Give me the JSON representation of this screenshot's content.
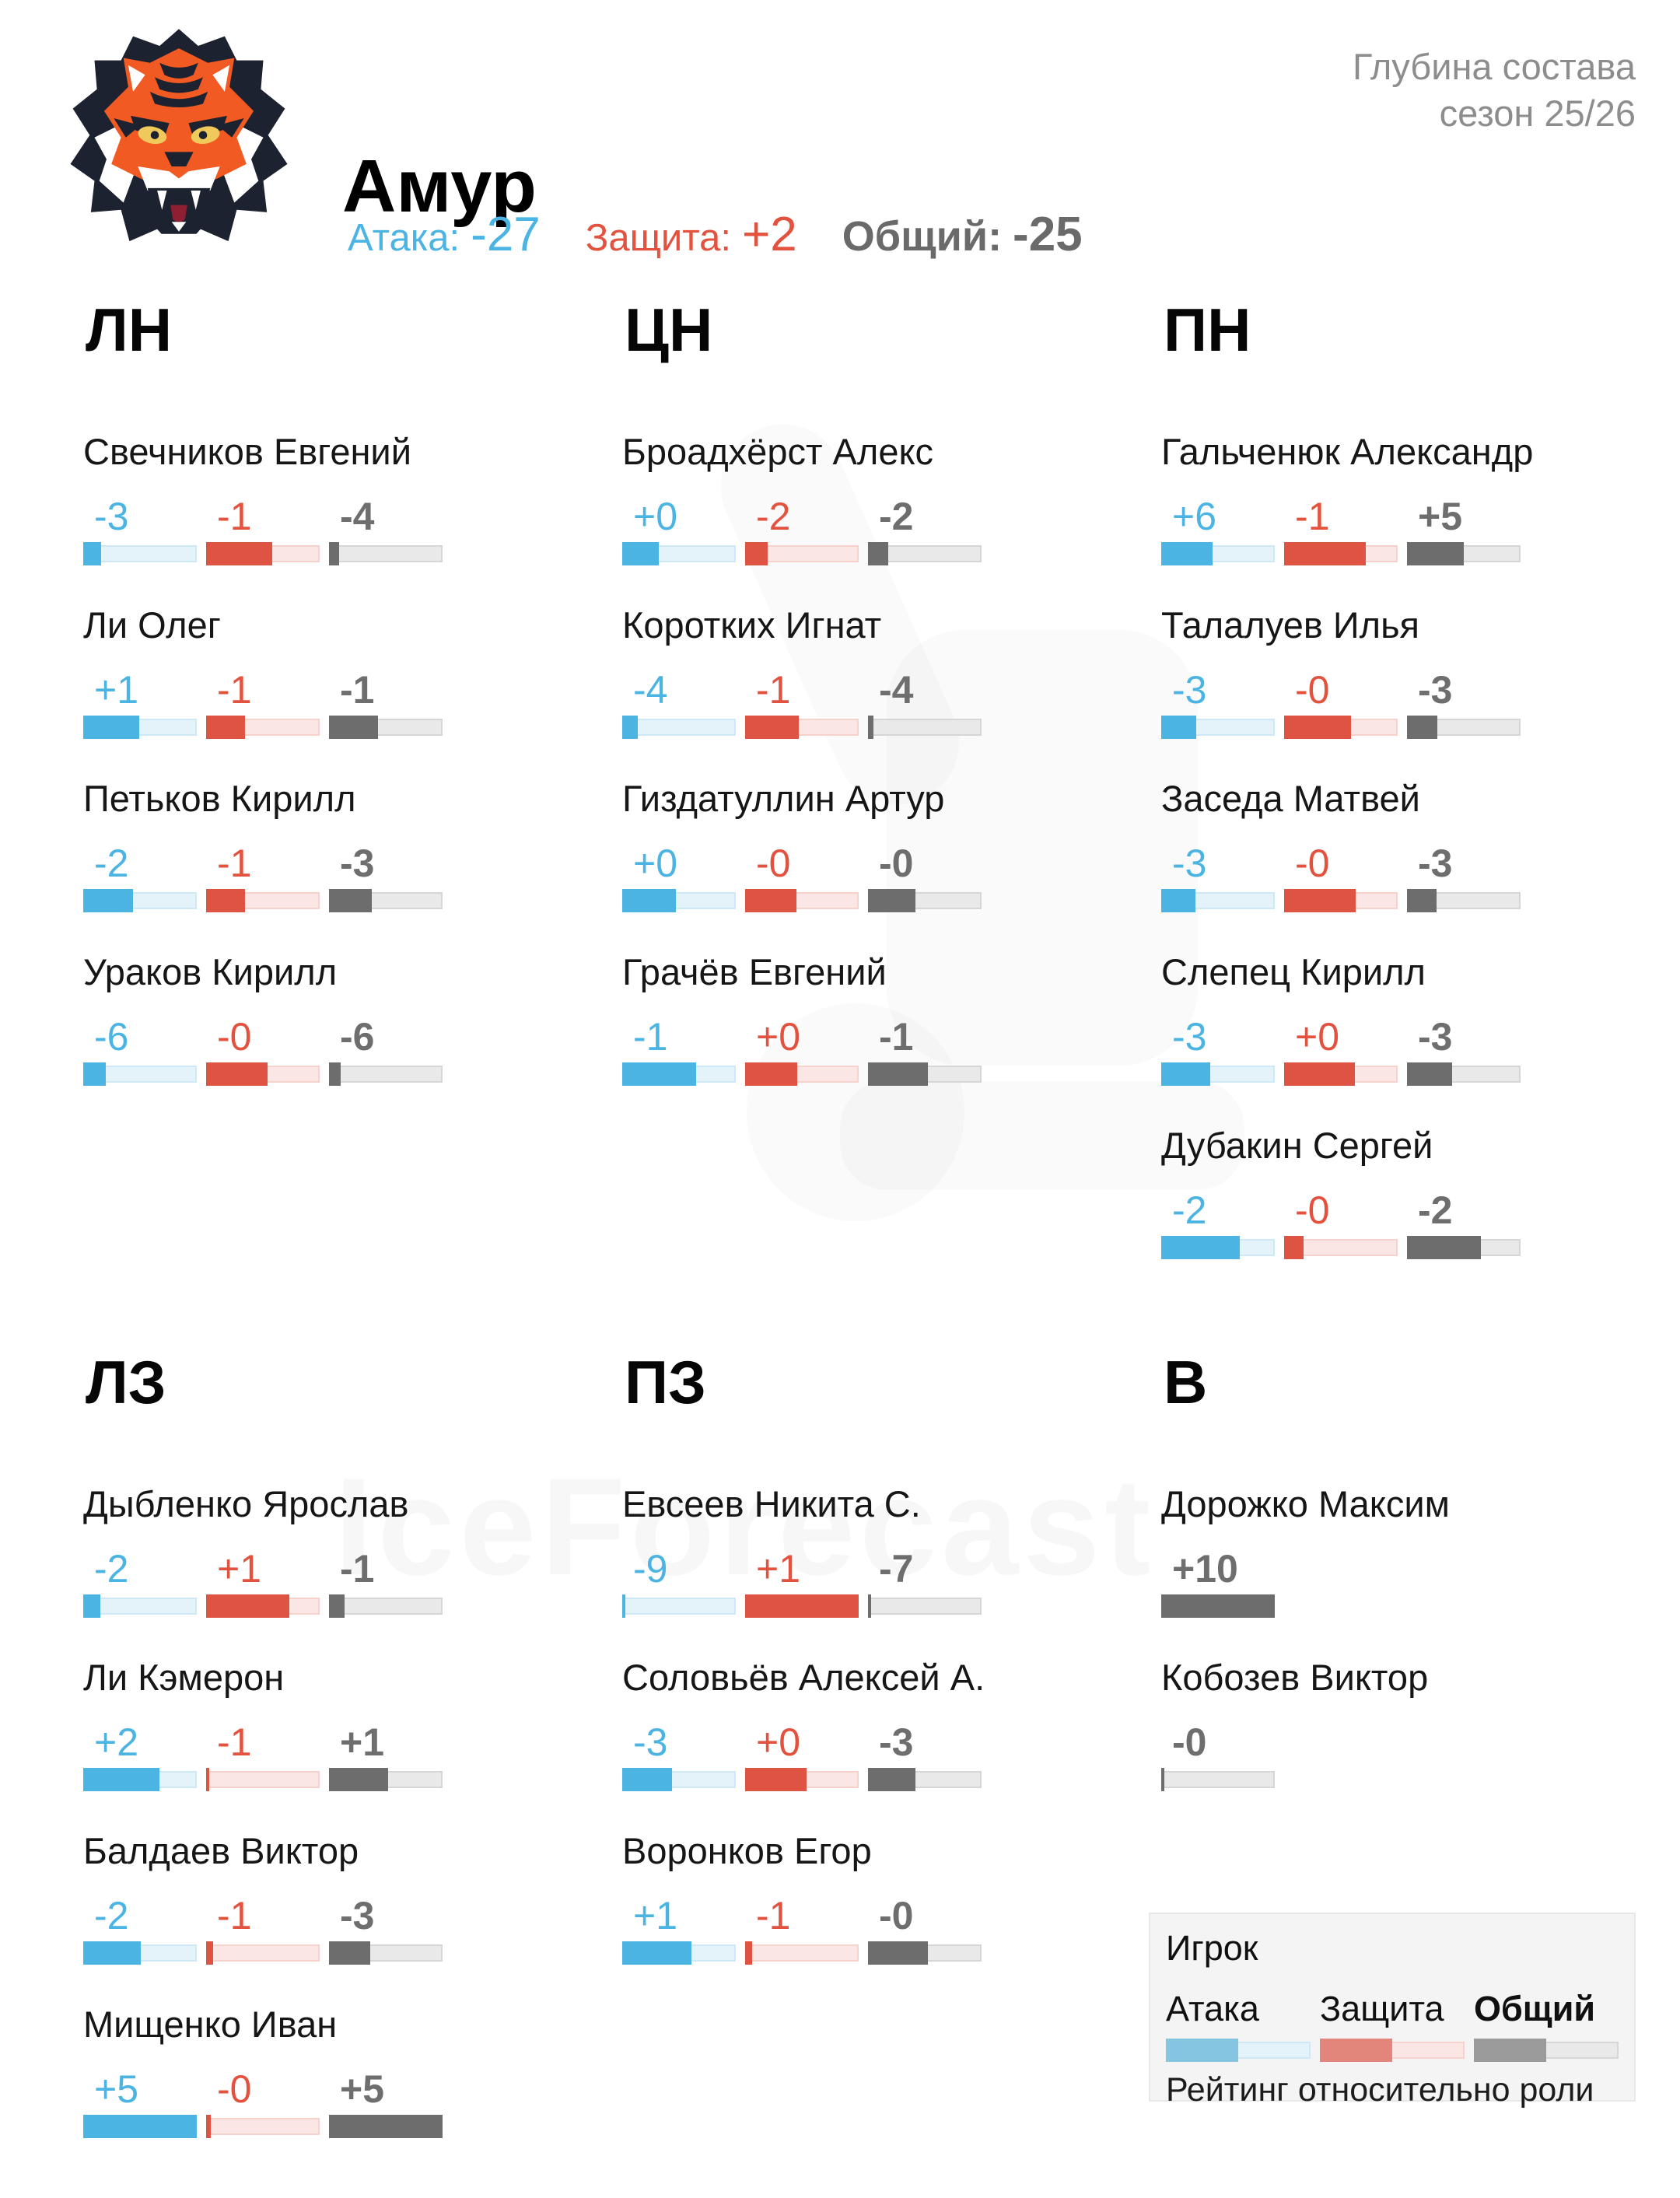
{
  "header": {
    "team_name": "Амур",
    "attack_label": "Атака:",
    "attack_value": "-27",
    "defense_label": "Защита:",
    "defense_value": "+2",
    "overall_label": "Общий:",
    "overall_value": "-25",
    "info_line1": "Глубина состава",
    "info_line2": "сезон 25/26"
  },
  "watermark": "IceForecast",
  "colors": {
    "attack": "#4cb4e3",
    "defense": "#df5342",
    "overall": "#6d6d6d",
    "logo_orange": "#f15a22",
    "logo_dark": "#1c2230"
  },
  "legend": {
    "player_label": "Игрок",
    "attack_label": "Атака",
    "defense_label": "Защита",
    "overall_label": "Общий",
    "caption": "Рейтинг относительно роли",
    "bar_pct": 50
  },
  "chart_data": {
    "type": "bar",
    "title": "Амур — Глубина состава, сезон 25/26",
    "series_labels": [
      "Атака",
      "Защита",
      "Общий"
    ],
    "note": "pcts = доля заполнения полосы (рейтинг относительно роли), values = подписи",
    "sections": [
      {
        "id": "ln",
        "label": "ЛН",
        "row": "top",
        "players": [
          {
            "name": "Свечников Евгений",
            "values": [
              "-3",
              "-1",
              "-4"
            ],
            "pcts": [
              16,
              58,
              9
            ]
          },
          {
            "name": "Ли Олег",
            "values": [
              "+1",
              "-1",
              "-1"
            ],
            "pcts": [
              49,
              34,
              43
            ]
          },
          {
            "name": "Петьков Кирилл",
            "values": [
              "-2",
              "-1",
              "-3"
            ],
            "pcts": [
              44,
              34,
              38
            ]
          },
          {
            "name": "Ураков Кирилл",
            "values": [
              "-6",
              "-0",
              "-6"
            ],
            "pcts": [
              20,
              54,
              10
            ]
          }
        ]
      },
      {
        "id": "cn",
        "label": "ЦН",
        "row": "top",
        "players": [
          {
            "name": "Броадхёрст Алекс",
            "values": [
              "+0",
              "-2",
              "-2"
            ],
            "pcts": [
              32,
              20,
              18
            ]
          },
          {
            "name": "Коротких Игнат",
            "values": [
              "-4",
              "-1",
              "-4"
            ],
            "pcts": [
              14,
              47,
              5
            ]
          },
          {
            "name": "Гиздатуллин Артур",
            "values": [
              "+0",
              "-0",
              "-0"
            ],
            "pcts": [
              47,
              45,
              42
            ]
          },
          {
            "name": "Грачёв Евгений",
            "values": [
              "-1",
              "+0",
              "-1"
            ],
            "pcts": [
              65,
              46,
              53
            ]
          }
        ]
      },
      {
        "id": "pn",
        "label": "ПН",
        "row": "top",
        "players": [
          {
            "name": "Гальченюк Александр",
            "values": [
              "+6",
              "-1",
              "+5"
            ],
            "pcts": [
              45,
              72,
              50
            ]
          },
          {
            "name": "Талалуев Илья",
            "values": [
              "-3",
              "-0",
              "-3"
            ],
            "pcts": [
              31,
              59,
              27
            ]
          },
          {
            "name": "Заседа Матвей",
            "values": [
              "-3",
              "-0",
              "-3"
            ],
            "pcts": [
              30,
              63,
              26
            ]
          },
          {
            "name": "Слепец Кирилл",
            "values": [
              "-3",
              "+0",
              "-3"
            ],
            "pcts": [
              43,
              62,
              40
            ]
          },
          {
            "name": "Дубакин Сергей",
            "values": [
              "-2",
              "-0",
              "-2"
            ],
            "pcts": [
              69,
              17,
              65
            ]
          }
        ]
      },
      {
        "id": "lz",
        "label": "ЛЗ",
        "row": "bottom",
        "players": [
          {
            "name": "Дыбленко Ярослав",
            "values": [
              "-2",
              "+1",
              "-1"
            ],
            "pcts": [
              15,
              73,
              14
            ]
          },
          {
            "name": "Ли Кэмерон",
            "values": [
              "+2",
              "-1",
              "+1"
            ],
            "pcts": [
              67,
              3,
              52
            ]
          },
          {
            "name": "Балдаев Виктор",
            "values": [
              "-2",
              "-1",
              "-3"
            ],
            "pcts": [
              51,
              6,
              36
            ]
          },
          {
            "name": "Мищенко Иван",
            "values": [
              "+5",
              "-0",
              "+5"
            ],
            "pcts": [
              100,
              4,
              100
            ]
          }
        ]
      },
      {
        "id": "pz",
        "label": "ПЗ",
        "row": "bottom",
        "players": [
          {
            "name": "Евсеев Никита С.",
            "values": [
              "-9",
              "+1",
              "-7"
            ],
            "pcts": [
              3,
              100,
              3
            ]
          },
          {
            "name": "Соловьёв Алексей А.",
            "values": [
              "-3",
              "+0",
              "-3"
            ],
            "pcts": [
              44,
              54,
              42
            ]
          },
          {
            "name": "Воронков Егор",
            "values": [
              "+1",
              "-1",
              "-0"
            ],
            "pcts": [
              61,
              6,
              53
            ]
          }
        ]
      },
      {
        "id": "v",
        "label": "В",
        "row": "bottom",
        "players": [
          {
            "name": "Дорожко Максим",
            "goalie": true,
            "values": [
              "+10"
            ],
            "pcts": [
              100
            ]
          },
          {
            "name": "Кобозев Виктор",
            "goalie": true,
            "values": [
              "-0"
            ],
            "pcts": [
              3
            ]
          }
        ]
      }
    ]
  }
}
